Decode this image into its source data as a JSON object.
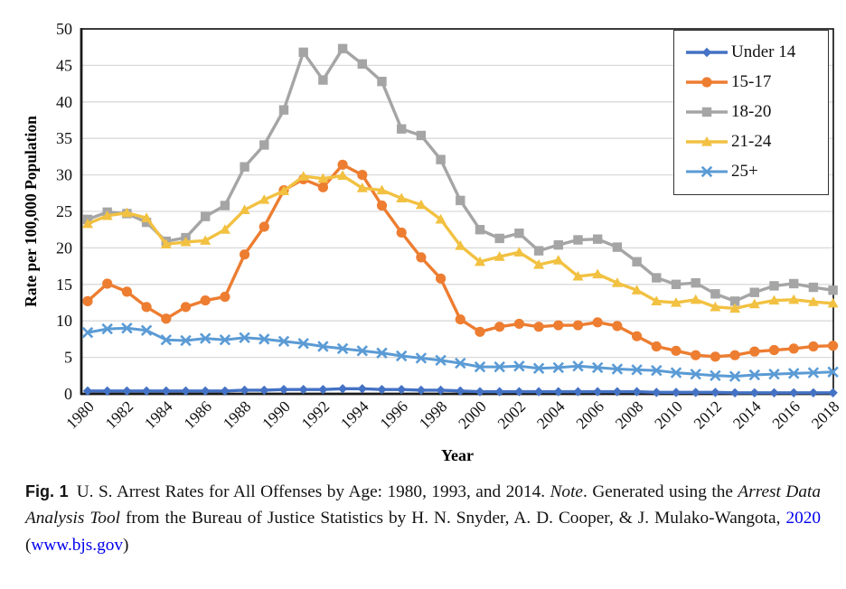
{
  "chart_data": {
    "type": "line",
    "title": "",
    "xlabel": "Year",
    "ylabel": "Rate per 100,000 Population",
    "ylim": [
      0,
      50
    ],
    "ytick_step": 5,
    "grid": "horizontal",
    "legend_position": "top-right",
    "x": [
      1980,
      1981,
      1982,
      1983,
      1984,
      1985,
      1986,
      1987,
      1988,
      1989,
      1990,
      1991,
      1992,
      1993,
      1994,
      1995,
      1996,
      1997,
      1998,
      1999,
      2000,
      2001,
      2002,
      2003,
      2004,
      2005,
      2006,
      2007,
      2008,
      2009,
      2010,
      2011,
      2012,
      2013,
      2014,
      2015,
      2016,
      2017,
      2018
    ],
    "x_labeled_every": 2,
    "series": [
      {
        "name": "Under 14",
        "marker": "diamond",
        "color": "#4472C4",
        "line_width": 3.4,
        "values": [
          0.4,
          0.4,
          0.4,
          0.4,
          0.4,
          0.4,
          0.4,
          0.4,
          0.5,
          0.5,
          0.6,
          0.6,
          0.6,
          0.7,
          0.7,
          0.6,
          0.6,
          0.5,
          0.5,
          0.4,
          0.3,
          0.3,
          0.3,
          0.3,
          0.3,
          0.3,
          0.3,
          0.3,
          0.3,
          0.2,
          0.2,
          0.2,
          0.2,
          0.15,
          0.15,
          0.15,
          0.15,
          0.15,
          0.15
        ]
      },
      {
        "name": "15-17",
        "marker": "circle",
        "color": "#ED7D31",
        "line_width": 3.4,
        "values": [
          12.7,
          15.1,
          14.0,
          11.9,
          10.3,
          11.9,
          12.8,
          13.3,
          19.1,
          22.9,
          27.9,
          29.4,
          28.3,
          31.4,
          30.0,
          25.8,
          22.1,
          18.7,
          15.8,
          10.2,
          8.5,
          9.2,
          9.6,
          9.2,
          9.4,
          9.4,
          9.8,
          9.3,
          7.9,
          6.5,
          5.9,
          5.3,
          5.1,
          5.3,
          5.8,
          6.0,
          6.2,
          6.5,
          6.6
        ]
      },
      {
        "name": "18-20",
        "marker": "square",
        "color": "#A5A5A5",
        "line_width": 3.4,
        "values": [
          23.9,
          24.9,
          24.7,
          23.5,
          20.9,
          21.4,
          24.3,
          25.8,
          31.1,
          34.1,
          38.9,
          46.8,
          43.0,
          47.3,
          45.2,
          42.8,
          36.3,
          35.4,
          32.1,
          26.5,
          22.5,
          21.3,
          22.0,
          19.6,
          20.4,
          21.1,
          21.2,
          20.1,
          18.1,
          15.9,
          15.0,
          15.2,
          13.7,
          12.7,
          13.9,
          14.8,
          15.1,
          14.6,
          14.2
        ]
      },
      {
        "name": "21-24",
        "marker": "triangle",
        "color": "#F2C141",
        "line_width": 3.4,
        "values": [
          23.3,
          24.4,
          24.8,
          24.1,
          20.5,
          20.8,
          21.0,
          22.5,
          25.2,
          26.6,
          27.8,
          29.8,
          29.5,
          29.9,
          28.2,
          27.9,
          26.8,
          25.9,
          23.9,
          20.3,
          18.1,
          18.8,
          19.4,
          17.7,
          18.3,
          16.1,
          16.4,
          15.2,
          14.2,
          12.7,
          12.5,
          12.9,
          11.9,
          11.7,
          12.3,
          12.8,
          12.9,
          12.6,
          12.4
        ]
      },
      {
        "name": "25+",
        "marker": "x",
        "color": "#5B9BD5",
        "line_width": 3.0,
        "values": [
          8.4,
          8.9,
          9.0,
          8.7,
          7.4,
          7.3,
          7.6,
          7.4,
          7.7,
          7.5,
          7.2,
          6.9,
          6.5,
          6.2,
          5.9,
          5.6,
          5.2,
          4.9,
          4.6,
          4.2,
          3.7,
          3.7,
          3.8,
          3.5,
          3.6,
          3.8,
          3.6,
          3.4,
          3.3,
          3.2,
          2.9,
          2.7,
          2.5,
          2.4,
          2.6,
          2.7,
          2.8,
          2.9,
          3.0
        ]
      }
    ],
    "colors": {
      "gridline": "#D9D9D9",
      "axis": "#1A1A1A",
      "tick_text": "#111111"
    }
  },
  "caption": {
    "fig_label": "Fig. 1",
    "segment_1": "U. S. Arrest Rates for All Offenses by Age: 1980, 1993, and 2014. ",
    "note_label": "Note",
    "segment_2": ". Generated using the ",
    "tool_title": "Arrest Data Analysis Tool",
    "segment_3": " from the Bureau of Justice Statistics by H. N. Snyder, A. D. Cooper, & J. Mulako-Wangota, ",
    "link_year": "2020",
    "segment_4": " (",
    "link_site": "www.bjs.gov",
    "segment_5": ")",
    "link_color": "#0000EE"
  }
}
